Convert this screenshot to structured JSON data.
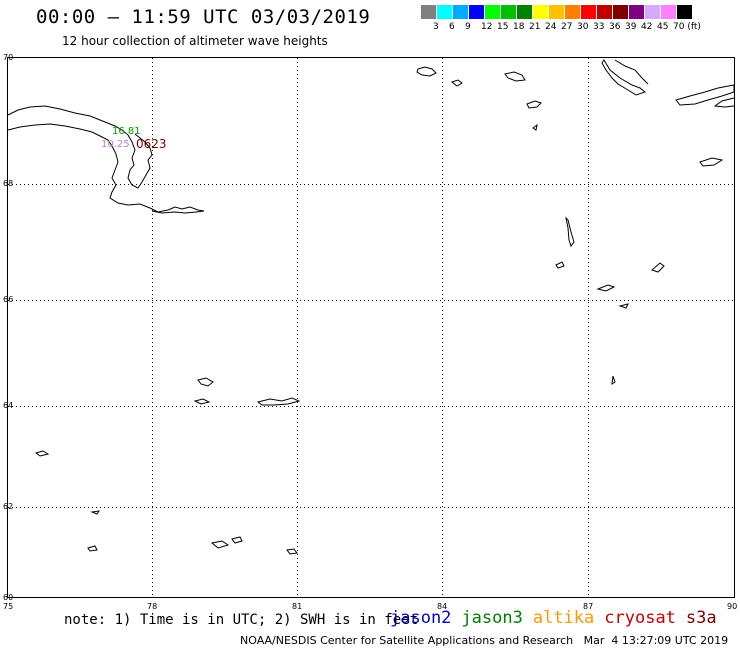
{
  "header": {
    "title": "00:00 – 11:59 UTC 03/03/2019",
    "subtitle": "12 hour collection of altimeter wave heights"
  },
  "colorbar": {
    "colors": [
      "#808080",
      "#00ffff",
      "#00aaff",
      "#0000ff",
      "#00ff00",
      "#00c000",
      "#008000",
      "#ffff00",
      "#ffc000",
      "#ff8000",
      "#ff0000",
      "#c00000",
      "#800000",
      "#800080",
      "#d8a8ff",
      "#ff80ff",
      "#000000"
    ],
    "labels": [
      "3",
      "6",
      "9",
      "12",
      "15",
      "18",
      "21",
      "24",
      "27",
      "30",
      "33",
      "36",
      "39",
      "42",
      "45",
      "70 (ft)"
    ]
  },
  "map": {
    "lat_labels": [
      "70",
      "68",
      "66",
      "64",
      "62",
      "60"
    ],
    "lon_labels": [
      "75",
      "78",
      "81",
      "84",
      "87",
      "90"
    ],
    "annotations": {
      "green_value": "16.81",
      "violet_value": "10.25",
      "time_label": "0623"
    },
    "annotation_colors": {
      "green": "#00a000",
      "violet": "#c080d0",
      "time": "#800000"
    }
  },
  "note": "note: 1) Time is in UTC; 2) SWH is in feet",
  "satellites": [
    {
      "name": "jason2",
      "color": "#0000cc"
    },
    {
      "name": "jason3",
      "color": "#008000"
    },
    {
      "name": "altika",
      "color": "#ff9900"
    },
    {
      "name": "cryosat",
      "color": "#cc0000"
    },
    {
      "name": "s3a",
      "color": "#800000"
    }
  ],
  "footer": "NOAA/NESDIS Center for Satellite Applications and Research   Mar  4 13:27:09 UTC 2019"
}
